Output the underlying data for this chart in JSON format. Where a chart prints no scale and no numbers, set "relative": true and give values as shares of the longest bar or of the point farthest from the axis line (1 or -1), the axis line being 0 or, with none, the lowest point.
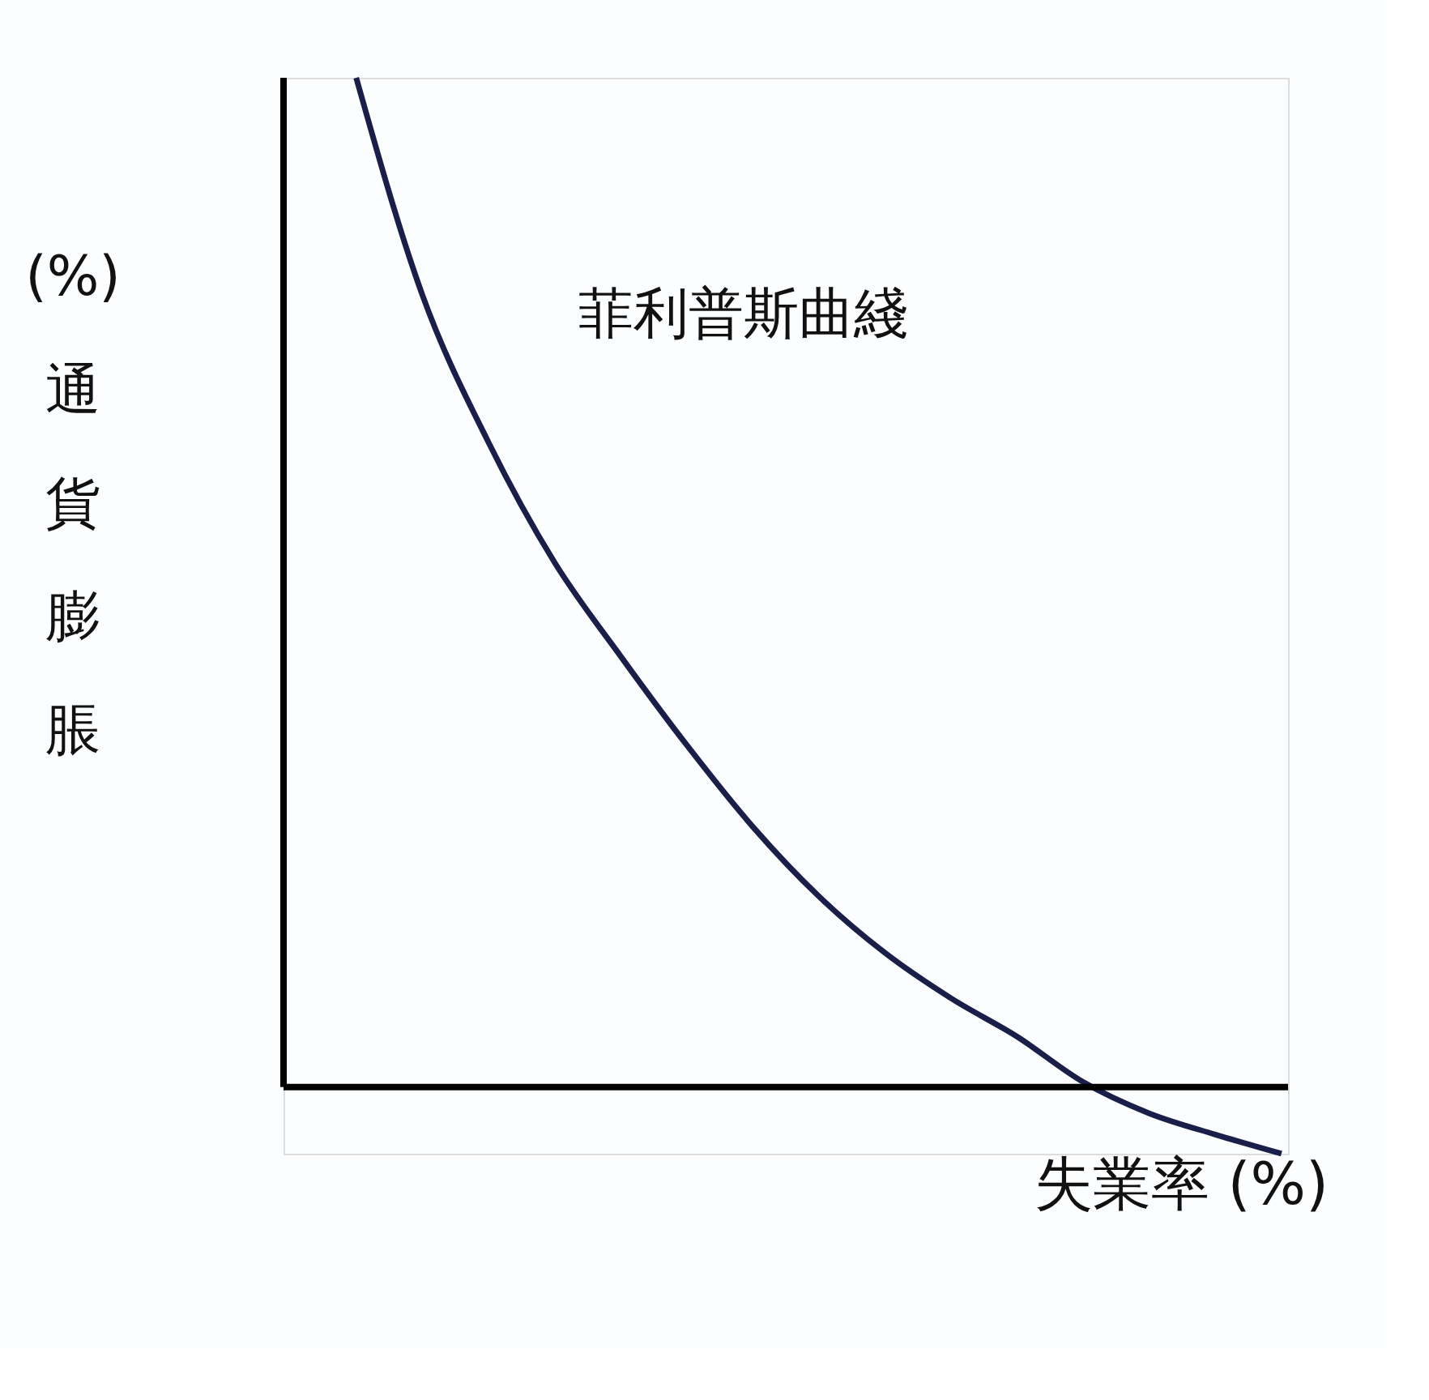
{
  "chart_data": {
    "type": "line",
    "relative": true,
    "xlabel": "失業率 (%)",
    "ylabel": "(%) 通貨膨脹",
    "categories": [
      null,
      null,
      null,
      null,
      null,
      null,
      null,
      null,
      null,
      null,
      null,
      null,
      null,
      null,
      null,
      null
    ],
    "series": [
      {
        "name": "菲利普斯曲綫",
        "color": "#1a1f4a",
        "values": [
          null,
          1.0,
          0.785,
          0.639,
          0.52,
          0.427,
          0.339,
          0.258,
          0.189,
          0.133,
          0.088,
          0.05,
          0.005,
          -0.026,
          -0.047,
          -0.066
        ]
      }
    ]
  }
}
